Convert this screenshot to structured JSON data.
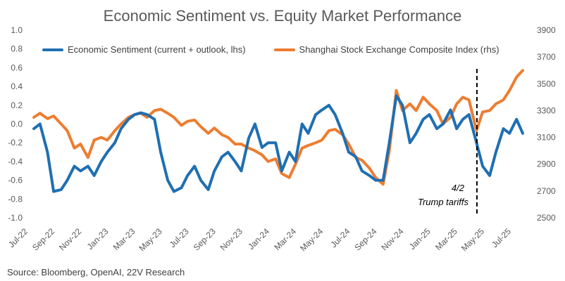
{
  "title": "Economic Sentiment vs. Equity Market Performance",
  "source": "Source: Bloomberg, OpenAI, 22V Research",
  "colors": {
    "sentiment": "#1f6fb2",
    "shanghai": "#ed7d31",
    "axis_text": "#595959",
    "annotation_line": "#000000"
  },
  "chart_data": {
    "type": "line",
    "title": "Economic Sentiment vs. Equity Market Performance",
    "x_tick_labels": [
      "Jul-22",
      "Sep-22",
      "Nov-22",
      "Jan-23",
      "Mar-23",
      "May-23",
      "Jul-23",
      "Sep-23",
      "Nov-23",
      "Jan-24",
      "Mar-24",
      "May-24",
      "Jul-24",
      "Sep-24",
      "Nov-24",
      "Jan-25",
      "Mar-25",
      "May-25",
      "Jul-25"
    ],
    "x_range": [
      "Jul-22",
      "Jul-25"
    ],
    "y_left": {
      "min": -1.0,
      "max": 1.0,
      "ticks": [
        "1.0",
        "0.8",
        "0.6",
        "0.4",
        "0.2",
        "0.0",
        "-0.2",
        "-0.4",
        "-0.6",
        "-0.8",
        "-1.0"
      ]
    },
    "y_right": {
      "min": 2500,
      "max": 3900,
      "ticks": [
        "3900",
        "3700",
        "3500",
        "3300",
        "3100",
        "2900",
        "2700",
        "2500"
      ]
    },
    "legend_position": "top",
    "series": [
      {
        "name": "Economic Sentiment (current + outlook, lhs)",
        "axis": "left",
        "x": [
          "2022-07-01",
          "2022-07-15",
          "2022-08-01",
          "2022-08-15",
          "2022-09-01",
          "2022-09-15",
          "2022-10-01",
          "2022-10-15",
          "2022-11-01",
          "2022-11-15",
          "2022-12-01",
          "2022-12-15",
          "2023-01-01",
          "2023-01-15",
          "2023-02-01",
          "2023-02-15",
          "2023-03-01",
          "2023-03-15",
          "2023-04-01",
          "2023-04-15",
          "2023-05-01",
          "2023-05-15",
          "2023-06-01",
          "2023-06-15",
          "2023-07-01",
          "2023-07-15",
          "2023-08-01",
          "2023-08-15",
          "2023-09-01",
          "2023-09-15",
          "2023-10-01",
          "2023-10-15",
          "2023-11-01",
          "2023-11-15",
          "2023-12-01",
          "2023-12-15",
          "2024-01-01",
          "2024-01-15",
          "2024-02-01",
          "2024-02-15",
          "2024-03-01",
          "2024-03-15",
          "2024-04-01",
          "2024-04-15",
          "2024-05-01",
          "2024-05-15",
          "2024-06-01",
          "2024-06-15",
          "2024-07-01",
          "2024-07-15",
          "2024-08-01",
          "2024-08-15",
          "2024-09-01",
          "2024-09-15",
          "2024-10-01",
          "2024-10-15",
          "2024-11-01",
          "2024-11-15",
          "2024-12-01",
          "2024-12-15",
          "2025-01-01",
          "2025-01-15",
          "2025-02-01",
          "2025-02-15",
          "2025-03-01",
          "2025-03-15",
          "2025-04-01",
          "2025-04-15",
          "2025-05-01",
          "2025-05-15",
          "2025-06-01",
          "2025-06-15",
          "2025-07-01",
          "2025-07-15"
        ],
        "values": [
          -0.05,
          0.0,
          -0.3,
          -0.72,
          -0.7,
          -0.6,
          -0.45,
          -0.5,
          -0.45,
          -0.55,
          -0.4,
          -0.3,
          -0.2,
          -0.05,
          0.05,
          0.1,
          0.12,
          0.1,
          0.05,
          -0.3,
          -0.6,
          -0.72,
          -0.68,
          -0.55,
          -0.45,
          -0.6,
          -0.7,
          -0.5,
          -0.35,
          -0.3,
          -0.4,
          -0.5,
          -0.15,
          0.0,
          -0.25,
          -0.2,
          -0.2,
          -0.5,
          -0.3,
          -0.4,
          0.0,
          -0.1,
          0.1,
          0.15,
          0.2,
          0.1,
          -0.1,
          -0.3,
          -0.35,
          -0.5,
          -0.55,
          -0.6,
          -0.6,
          -0.2,
          0.3,
          0.2,
          -0.2,
          -0.1,
          0.05,
          0.1,
          -0.05,
          0.0,
          0.15,
          -0.05,
          0.05,
          0.1,
          -0.2,
          -0.45,
          -0.55,
          -0.3,
          -0.05,
          -0.1,
          0.05,
          -0.1
        ]
      },
      {
        "name": "Shanghai Stock Exchange Composite Index (rhs)",
        "axis": "right",
        "x": [
          "2022-07-01",
          "2022-07-15",
          "2022-08-01",
          "2022-08-15",
          "2022-09-01",
          "2022-09-15",
          "2022-10-01",
          "2022-10-15",
          "2022-11-01",
          "2022-11-15",
          "2022-12-01",
          "2022-12-15",
          "2023-01-01",
          "2023-01-15",
          "2023-02-01",
          "2023-02-15",
          "2023-03-01",
          "2023-03-15",
          "2023-04-01",
          "2023-04-15",
          "2023-05-01",
          "2023-05-15",
          "2023-06-01",
          "2023-06-15",
          "2023-07-01",
          "2023-07-15",
          "2023-08-01",
          "2023-08-15",
          "2023-09-01",
          "2023-09-15",
          "2023-10-01",
          "2023-10-15",
          "2023-11-01",
          "2023-11-15",
          "2023-12-01",
          "2023-12-15",
          "2024-01-01",
          "2024-01-15",
          "2024-02-01",
          "2024-02-15",
          "2024-03-01",
          "2024-03-15",
          "2024-04-01",
          "2024-04-15",
          "2024-05-01",
          "2024-05-15",
          "2024-06-01",
          "2024-06-15",
          "2024-07-01",
          "2024-07-15",
          "2024-08-01",
          "2024-08-15",
          "2024-09-01",
          "2024-09-15",
          "2024-10-01",
          "2024-10-15",
          "2024-11-01",
          "2024-11-15",
          "2024-12-01",
          "2024-12-15",
          "2025-01-01",
          "2025-01-15",
          "2025-02-01",
          "2025-02-15",
          "2025-03-01",
          "2025-03-15",
          "2025-04-01",
          "2025-04-15",
          "2025-05-01",
          "2025-05-15",
          "2025-06-01",
          "2025-06-15",
          "2025-07-01",
          "2025-07-15"
        ],
        "values": [
          3250,
          3280,
          3240,
          3260,
          3200,
          3150,
          3020,
          3050,
          2950,
          3080,
          3100,
          3080,
          3150,
          3200,
          3250,
          3270,
          3280,
          3250,
          3300,
          3310,
          3280,
          3250,
          3190,
          3220,
          3230,
          3180,
          3130,
          3170,
          3120,
          3100,
          3050,
          3050,
          3020,
          3000,
          2970,
          2920,
          2940,
          2830,
          2800,
          2900,
          3020,
          3040,
          3060,
          3080,
          3150,
          3160,
          3120,
          3050,
          2950,
          2930,
          2870,
          2800,
          2750,
          3000,
          3450,
          3300,
          3350,
          3300,
          3400,
          3350,
          3300,
          3200,
          3250,
          3350,
          3400,
          3380,
          3150,
          3290,
          3300,
          3350,
          3380,
          3450,
          3550,
          3600
        ]
      }
    ],
    "annotation": {
      "x": "2025-04-02",
      "line_style": "dashed",
      "text_line1": "4/2",
      "text_line2": "Trump tariffs"
    }
  }
}
